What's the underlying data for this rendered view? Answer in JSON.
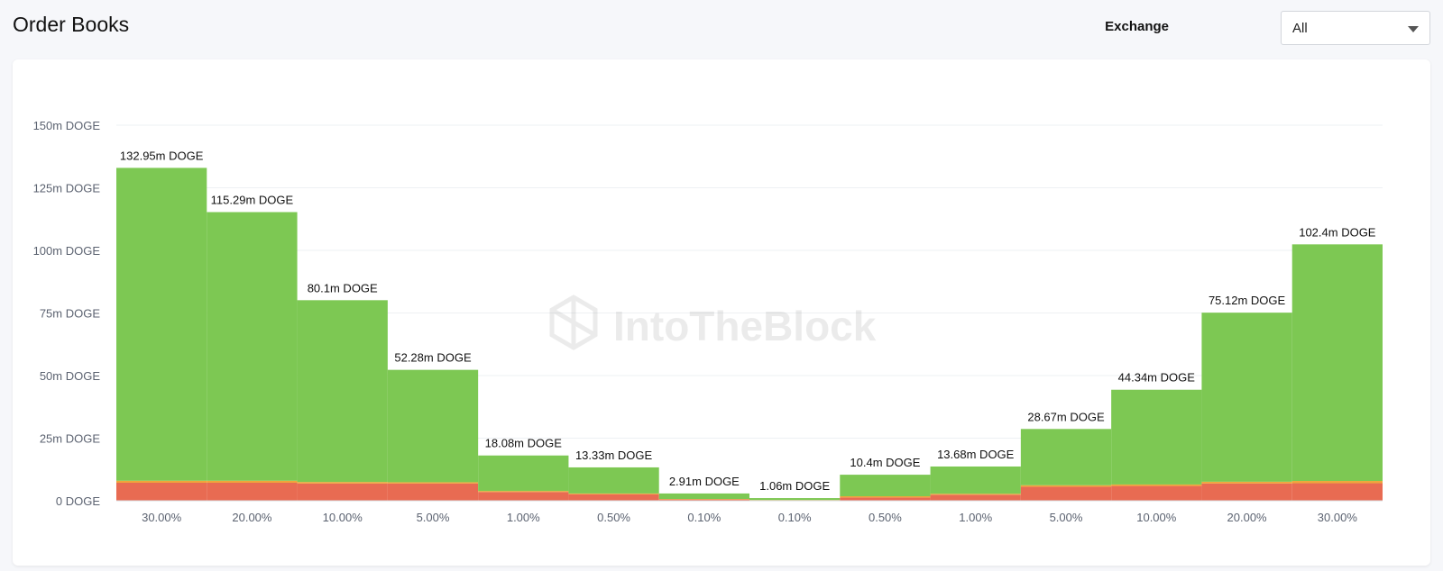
{
  "header": {
    "title": "Order Books",
    "exchange_label": "Exchange",
    "exchange_value": "All"
  },
  "watermark": "IntoTheBlock",
  "colors": {
    "green": "#7dc853",
    "red": "#e86b52",
    "orange": "#f0a53a",
    "grid": "#eef0f3",
    "axis_text": "#5b6270"
  },
  "chart_data": {
    "type": "bar",
    "title": "",
    "xlabel": "",
    "ylabel": "",
    "ylim": [
      0,
      150
    ],
    "y_unit": "m DOGE",
    "y_ticks": [
      "0 DOGE",
      "25m DOGE",
      "50m DOGE",
      "75m DOGE",
      "100m DOGE",
      "125m DOGE",
      "150m DOGE"
    ],
    "y_tick_values": [
      0,
      25,
      50,
      75,
      100,
      125,
      150
    ],
    "categories": [
      "30.00%",
      "20.00%",
      "10.00%",
      "5.00%",
      "1.00%",
      "0.50%",
      "0.10%",
      "0.10%",
      "0.50%",
      "1.00%",
      "5.00%",
      "10.00%",
      "20.00%",
      "30.00%"
    ],
    "totals": [
      132.95,
      115.29,
      80.1,
      52.28,
      18.08,
      13.33,
      2.91,
      1.06,
      10.4,
      13.68,
      28.67,
      44.34,
      75.12,
      102.4
    ],
    "data_labels": [
      "132.95m DOGE",
      "115.29m DOGE",
      "80.1m DOGE",
      "52.28m DOGE",
      "18.08m DOGE",
      "13.33m DOGE",
      "2.91m DOGE",
      "1.06m DOGE",
      "10.4m DOGE",
      "13.68m DOGE",
      "28.67m DOGE",
      "44.34m DOGE",
      "75.12m DOGE",
      "102.4m DOGE"
    ],
    "series": [
      {
        "color": "#e86b52",
        "values": [
          7.2,
          7.2,
          6.9,
          6.9,
          3.5,
          2.6,
          0.5,
          0.2,
          1.3,
          2.4,
          5.6,
          5.9,
          6.9,
          7.0
        ]
      },
      {
        "color": "#f0a53a",
        "values": [
          0.8,
          0.8,
          0.6,
          0.5,
          0.4,
          0.3,
          0.2,
          0.1,
          0.5,
          0.4,
          0.6,
          0.6,
          0.7,
          0.9
        ]
      },
      {
        "color": "#7dc853",
        "values": [
          124.95,
          107.29,
          72.6,
          44.88,
          14.18,
          10.43,
          2.21,
          0.76,
          8.6,
          10.88,
          22.47,
          37.84,
          67.52,
          94.5
        ]
      }
    ],
    "stacked": true,
    "grid": true,
    "legend": "none"
  }
}
